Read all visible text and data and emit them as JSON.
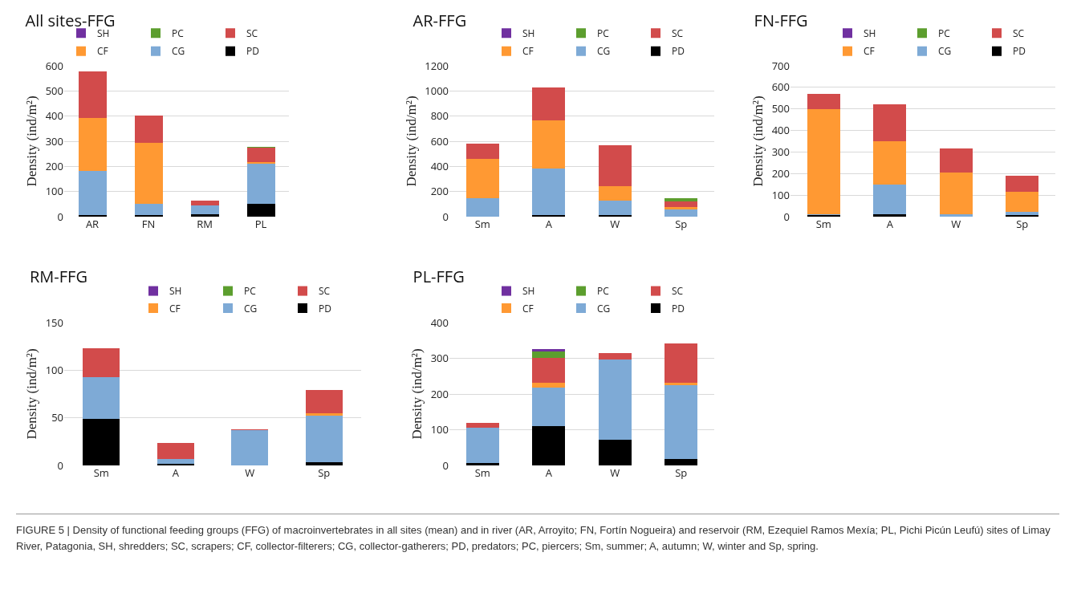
{
  "chart_data": [
    {
      "type": "bar",
      "stacked": true,
      "title": "All sites-FFG",
      "ylabel": "Density (ind/m²)",
      "categories": [
        "AR",
        "FN",
        "RM",
        "PL"
      ],
      "ylim": [
        0,
        600
      ],
      "yticks": [
        0,
        100,
        200,
        300,
        400,
        500,
        600
      ],
      "grid": "y",
      "legend": "top right",
      "annotations": [
        "FIGURE 5 | Density of functional feeding groups (FFG) of macroinvertebrates in all sites (mean) and in river (AR, Arroyito; FN, Fortín Nogueira) and reservoir (RM, Ezequiel Ramos Mexía; PL, Pichi Picún Leufú) sites of Limay River, Patagonia, SH, shredders; SC, scrapers; CF, collector-filterers; CG, collector-gatherers; PD, predators; PC, piercers; Sm, summer; A, autumn; W, winter and Sp, spring."
      ],
      "series": [
        {
          "name": "PD",
          "color": "#000000",
          "values": [
            7,
            7,
            10,
            50
          ]
        },
        {
          "name": "CG",
          "color": "#7eaad6",
          "values": [
            175,
            43,
            35,
            160
          ]
        },
        {
          "name": "CF",
          "color": "#ff9933",
          "values": [
            210,
            243,
            0,
            7
          ]
        },
        {
          "name": "SC",
          "color": "#d24b4b",
          "values": [
            186,
            109,
            20,
            57
          ]
        },
        {
          "name": "PC",
          "color": "#5c9e2e",
          "values": [
            0,
            0,
            0,
            5
          ]
        },
        {
          "name": "SH",
          "color": "#7030a0",
          "values": [
            0,
            0,
            0,
            0
          ]
        }
      ]
    },
    {
      "type": "bar",
      "stacked": true,
      "title": "AR-FFG",
      "ylabel": "Density (ind/m²)",
      "categories": [
        "Sm",
        "A",
        "W",
        "Sp"
      ],
      "ylim": [
        0,
        1200
      ],
      "yticks": [
        0,
        200,
        400,
        600,
        800,
        1000,
        1200
      ],
      "grid": "y",
      "legend": "top right",
      "series": [
        {
          "name": "PD",
          "color": "#000000",
          "values": [
            0,
            10,
            15,
            0
          ]
        },
        {
          "name": "CG",
          "color": "#7eaad6",
          "values": [
            145,
            375,
            110,
            55
          ]
        },
        {
          "name": "CF",
          "color": "#ff9933",
          "values": [
            315,
            380,
            120,
            20
          ]
        },
        {
          "name": "SC",
          "color": "#d24b4b",
          "values": [
            120,
            265,
            320,
            45
          ]
        },
        {
          "name": "PC",
          "color": "#5c9e2e",
          "values": [
            0,
            0,
            0,
            25
          ]
        },
        {
          "name": "SH",
          "color": "#7030a0",
          "values": [
            0,
            0,
            0,
            0
          ]
        }
      ]
    },
    {
      "type": "bar",
      "stacked": true,
      "title": "FN-FFG",
      "ylabel": "Density (ind/m²)",
      "categories": [
        "Sm",
        "A",
        "W",
        "Sp"
      ],
      "ylim": [
        0,
        700
      ],
      "yticks": [
        0,
        100,
        200,
        300,
        400,
        500,
        600,
        700
      ],
      "grid": "y",
      "legend": "top right",
      "series": [
        {
          "name": "PD",
          "color": "#000000",
          "values": [
            8,
            12,
            0,
            8
          ]
        },
        {
          "name": "CG",
          "color": "#7eaad6",
          "values": [
            5,
            138,
            10,
            15
          ]
        },
        {
          "name": "CF",
          "color": "#ff9933",
          "values": [
            487,
            200,
            195,
            92
          ]
        },
        {
          "name": "SC",
          "color": "#d24b4b",
          "values": [
            70,
            170,
            110,
            75
          ]
        },
        {
          "name": "PC",
          "color": "#5c9e2e",
          "values": [
            0,
            0,
            0,
            0
          ]
        },
        {
          "name": "SH",
          "color": "#7030a0",
          "values": [
            0,
            0,
            3,
            0
          ]
        }
      ]
    },
    {
      "type": "bar",
      "stacked": true,
      "title": "RM-FFG",
      "ylabel": "Density (ind/m²)",
      "categories": [
        "Sm",
        "A",
        "W",
        "Sp"
      ],
      "ylim": [
        0,
        150
      ],
      "yticks": [
        0,
        50,
        100,
        150
      ],
      "grid": "y",
      "legend": "top right",
      "series": [
        {
          "name": "PD",
          "color": "#000000",
          "values": [
            49,
            2,
            0,
            3
          ]
        },
        {
          "name": "CG",
          "color": "#7eaad6",
          "values": [
            44,
            5,
            37,
            49
          ]
        },
        {
          "name": "CF",
          "color": "#ff9933",
          "values": [
            0,
            0,
            0,
            3
          ]
        },
        {
          "name": "SC",
          "color": "#d24b4b",
          "values": [
            30,
            17,
            1,
            24
          ]
        },
        {
          "name": "PC",
          "color": "#5c9e2e",
          "values": [
            0,
            0,
            0,
            0
          ]
        },
        {
          "name": "SH",
          "color": "#7030a0",
          "values": [
            0,
            0,
            0,
            0
          ]
        }
      ]
    },
    {
      "type": "bar",
      "stacked": true,
      "title": "PL-FFG",
      "ylabel": "Density (ind/m²)",
      "categories": [
        "Sm",
        "A",
        "W",
        "Sp"
      ],
      "ylim": [
        0,
        400
      ],
      "yticks": [
        0,
        100,
        200,
        300,
        400
      ],
      "grid": "y",
      "legend": "top right",
      "series": [
        {
          "name": "PD",
          "color": "#000000",
          "values": [
            6,
            110,
            72,
            17
          ]
        },
        {
          "name": "CG",
          "color": "#7eaad6",
          "values": [
            100,
            108,
            224,
            207
          ]
        },
        {
          "name": "CF",
          "color": "#ff9933",
          "values": [
            0,
            14,
            0,
            8
          ]
        },
        {
          "name": "SC",
          "color": "#d24b4b",
          "values": [
            14,
            70,
            18,
            110
          ]
        },
        {
          "name": "PC",
          "color": "#5c9e2e",
          "values": [
            0,
            18,
            0,
            0
          ]
        },
        {
          "name": "SH",
          "color": "#7030a0",
          "values": [
            0,
            5,
            0,
            0
          ]
        }
      ]
    }
  ]
}
